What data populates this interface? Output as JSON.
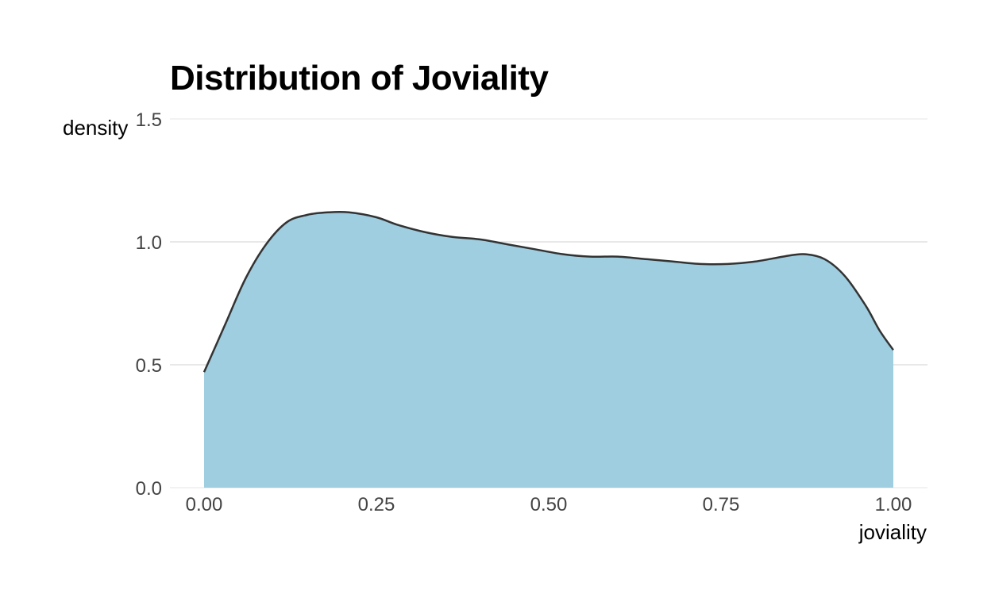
{
  "chart_data": {
    "type": "area",
    "title": "Distribution of Joviality",
    "xlabel": "joviality",
    "ylabel": "density",
    "xlim": [
      0.0,
      1.0
    ],
    "ylim": [
      0.0,
      1.5
    ],
    "x_ticks": [
      "0.00",
      "0.25",
      "0.50",
      "0.75",
      "1.00"
    ],
    "y_ticks": [
      "0.0",
      "0.5",
      "1.0",
      "1.5"
    ],
    "grid": true,
    "legend": "none",
    "fill_color": "#9fcee0",
    "line_color": "#333333",
    "grid_color": "#d0d0d0",
    "series": [
      {
        "x": [
          0.0,
          0.03,
          0.06,
          0.09,
          0.12,
          0.15,
          0.18,
          0.21,
          0.25,
          0.28,
          0.32,
          0.36,
          0.4,
          0.44,
          0.48,
          0.52,
          0.56,
          0.6,
          0.64,
          0.68,
          0.72,
          0.76,
          0.8,
          0.84,
          0.87,
          0.9,
          0.93,
          0.96,
          0.98,
          1.0
        ],
        "y": [
          0.47,
          0.66,
          0.85,
          0.99,
          1.08,
          1.11,
          1.12,
          1.12,
          1.1,
          1.07,
          1.04,
          1.02,
          1.01,
          0.99,
          0.97,
          0.95,
          0.94,
          0.94,
          0.93,
          0.92,
          0.91,
          0.91,
          0.92,
          0.94,
          0.95,
          0.93,
          0.86,
          0.74,
          0.64,
          0.56
        ]
      }
    ]
  }
}
